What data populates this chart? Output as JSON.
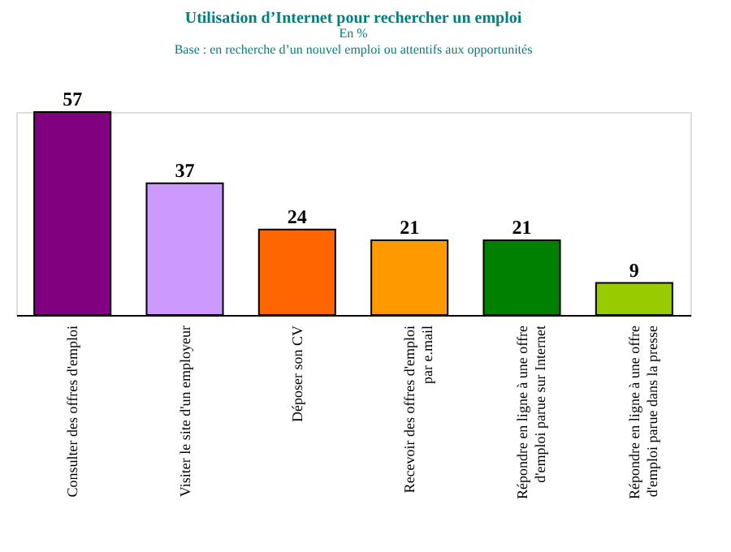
{
  "chart_data": {
    "type": "bar",
    "title": "Utilisation d’Internet pour rechercher un emploi",
    "subtitle": "En %",
    "annotations": [
      "Base : en recherche d’un nouvel emploi ou attentifs aux opportunités"
    ],
    "categories": [
      "Consulter des offres d'emploi",
      "Visiter le site d'un employeur",
      "Déposer son CV",
      "Recevoir des offres d'emploi\npar e.mail",
      "Répondre en ligne à une offre\nd'emploi parue sur Internet",
      "Répondre en ligne à une offre\nd'emploi parue dans la presse"
    ],
    "values": [
      57,
      37,
      24,
      21,
      21,
      9
    ],
    "colors": [
      "#800080",
      "#cc99ff",
      "#ff6600",
      "#ff9900",
      "#008000",
      "#99cc00"
    ],
    "data_labels": true,
    "grid": false
  }
}
